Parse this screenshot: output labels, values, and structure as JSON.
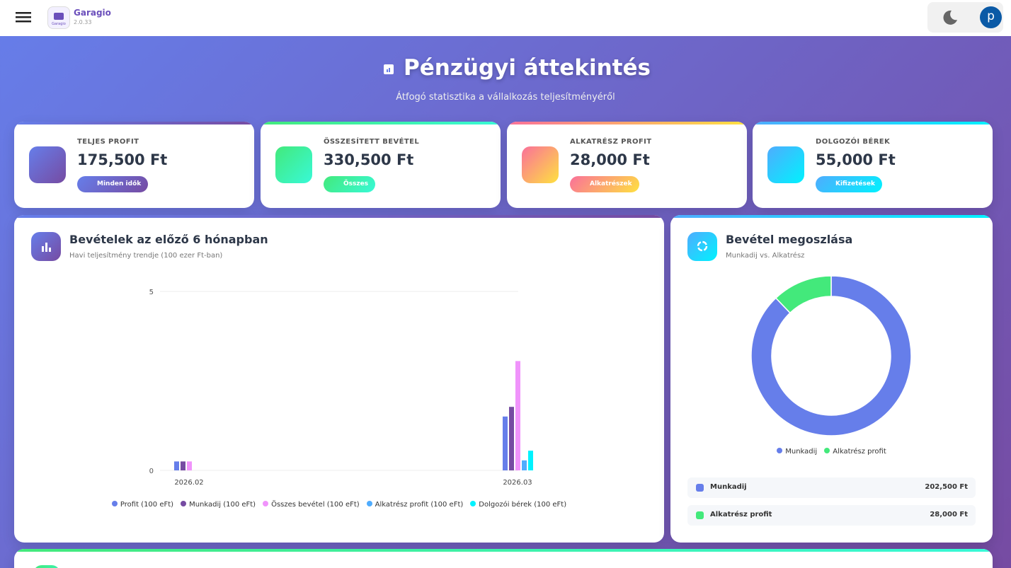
{
  "header": {
    "app_name": "Garagio",
    "version": "2.0.33",
    "avatar": "p"
  },
  "page": {
    "title": "Pénzügyi áttekintés",
    "subtitle": "Átfogó statisztika a vállalkozás teljesítményéről"
  },
  "stats": [
    {
      "label": "TELJES PROFIT",
      "value": "175,500 Ft",
      "badge": "Minden idők"
    },
    {
      "label": "ÖSSZESÍTETT BEVÉTEL",
      "value": "330,500 Ft",
      "badge": "Összes"
    },
    {
      "label": "ALKATRÉSZ PROFIT",
      "value": "28,000 Ft",
      "badge": "Alkatrészek"
    },
    {
      "label": "DOLGOZÓI BÉREK",
      "value": "55,000 Ft",
      "badge": "Kifizetések"
    }
  ],
  "chart_data": [
    {
      "type": "bar",
      "title": "Bevételek az előző 6 hónapban",
      "subtitle": "Havi teljesítmény trendje (100 ezer Ft-ban)",
      "categories": [
        "2026.02",
        "2026.03"
      ],
      "series": [
        {
          "name": "Profit (100 eFt)",
          "color": "#667eea",
          "values": [
            0.25,
            1.505
          ]
        },
        {
          "name": "Munkadij (100 eFt)",
          "color": "#764ba2",
          "values": [
            0.25,
            1.775
          ]
        },
        {
          "name": "Összes bevétel (100 eFt)",
          "color": "#f093fb",
          "values": [
            0.25,
            3.055
          ]
        },
        {
          "name": "Alkatrész profit (100 eFt)",
          "color": "#4facfe",
          "values": [
            0,
            0.28
          ]
        },
        {
          "name": "Dolgozói bérek (100 eFt)",
          "color": "#00f2fe",
          "values": [
            0,
            0.55
          ]
        }
      ],
      "ylim": [
        0,
        5
      ],
      "yticks": [
        0,
        5
      ],
      "grid": true,
      "legend": "bottom"
    },
    {
      "type": "pie",
      "donut": true,
      "title": "Bevétel megoszlása",
      "subtitle": "Munkadij vs. Alkatrész",
      "categories": [
        "Munkadij",
        "Alkatrész profit"
      ],
      "values": [
        202500,
        28000
      ],
      "value_labels": [
        "202,500 Ft",
        "28,000 Ft"
      ],
      "colors": [
        "#667eea",
        "#43e97b"
      ],
      "legend": "bottom"
    }
  ]
}
